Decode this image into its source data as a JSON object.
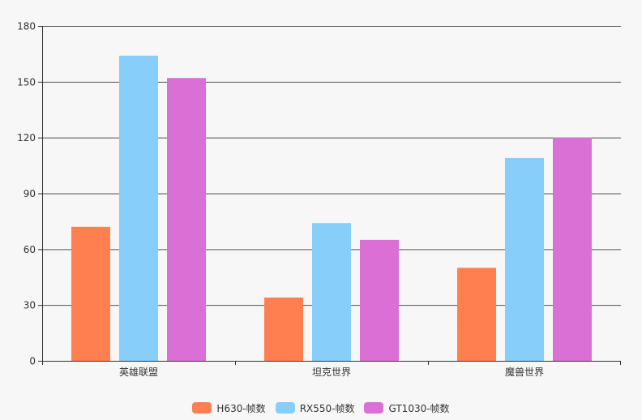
{
  "chart_data": {
    "type": "bar",
    "categories": [
      "英雄联盟",
      "坦克世界",
      "魔兽世界"
    ],
    "series": [
      {
        "name": "H630-帧数",
        "values": [
          72,
          34,
          50
        ],
        "color": "#ff7f50"
      },
      {
        "name": "RX550-帧数",
        "values": [
          164,
          74,
          109
        ],
        "color": "#87cefa"
      },
      {
        "name": "GT1030-帧数",
        "values": [
          152,
          65,
          120
        ],
        "color": "#da70d6"
      }
    ],
    "ylim": [
      0,
      180
    ],
    "yticks": [
      0,
      30,
      60,
      90,
      120,
      150,
      180
    ],
    "grid": true,
    "legend_position": "bottom-center"
  }
}
